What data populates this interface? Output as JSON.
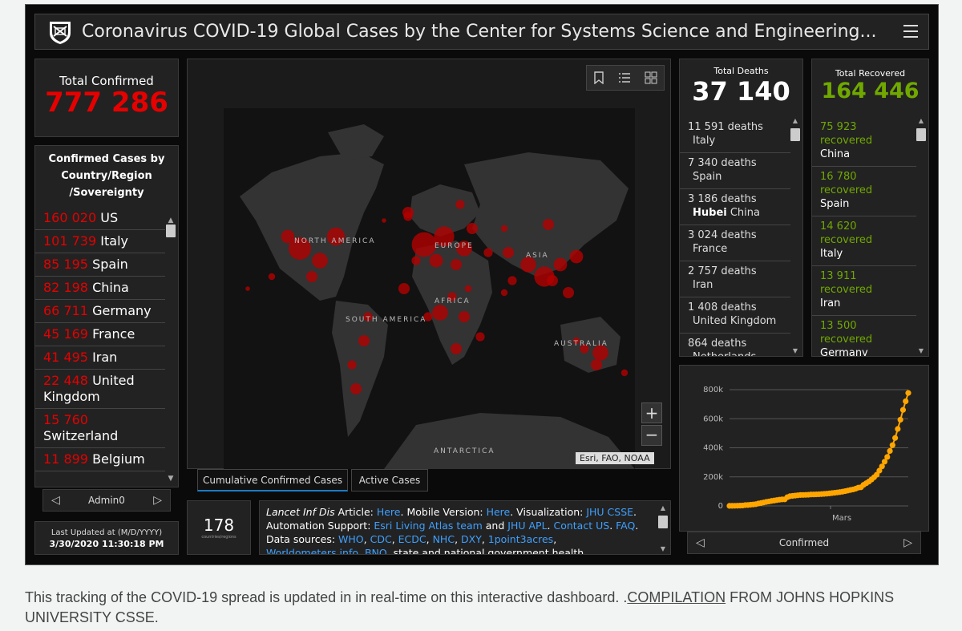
{
  "header": {
    "title": "Coronavirus COVID-19 Global Cases by the Center for Systems Science and Engineering..."
  },
  "confirmed": {
    "label": "Total Confirmed",
    "value": "777 286",
    "list_title": "Confirmed Cases by Country/Region /Sovereignty",
    "items": [
      {
        "n": "160 020",
        "c": "US"
      },
      {
        "n": "101 739",
        "c": "Italy"
      },
      {
        "n": "85 195",
        "c": "Spain"
      },
      {
        "n": "82 198",
        "c": "China"
      },
      {
        "n": "66 711",
        "c": "Germany"
      },
      {
        "n": "45 169",
        "c": "France"
      },
      {
        "n": "41 495",
        "c": "Iran"
      },
      {
        "n": "22 448",
        "c": "United Kingdom"
      },
      {
        "n": "15 760",
        "c": "Switzerland"
      },
      {
        "n": "11 899",
        "c": "Belgium"
      }
    ],
    "nav_label": "Admin0"
  },
  "updated": {
    "label": "Last Updated at (M/D/YYYY)",
    "value": "3/30/2020 11:30:18 PM"
  },
  "countries": {
    "count": "178",
    "caption": "countries/regions"
  },
  "map": {
    "labels": [
      "NORTH AMERICA",
      "EUROPE",
      "ASIA",
      "AFRICA",
      "SOUTH AMERICA",
      "AUSTRALIA",
      "ANTARCTICA"
    ],
    "attribution": "Esri, FAO, NOAA",
    "tabs": [
      "Cumulative Confirmed Cases",
      "Active Cases"
    ]
  },
  "info": {
    "line1_prefix": "Lancet Inf Dis",
    "line1_a": " Article: ",
    "line1_l1": "Here",
    "line1_b": ". Mobile Version: ",
    "line1_l2": "Here",
    "line1_c": ". Visualization: ",
    "line1_l3": "JHU CSSE",
    "line1_d": ".",
    "line2_a": "Automation Support: ",
    "line2_l1": "Esri Living Atlas team",
    "line2_b": " and ",
    "line2_l2": "JHU APL",
    "line2_c": ". ",
    "line2_l3": "Contact US",
    "line2_d": ". ",
    "line2_l4": "FAQ",
    "line2_e": ".",
    "line3_a": "Data sources: ",
    "line3_l1": "WHO",
    "line3_l2": "CDC",
    "line3_l3": "ECDC",
    "line3_l4": "NHC",
    "line3_l5": "DXY",
    "line3_l6": "1point3acres",
    "line4_l1": "Worldometers.info",
    "line4_l2": "BNO",
    "line4_a": ", state and national government health"
  },
  "deaths": {
    "label": "Total Deaths",
    "value": "37 140",
    "items": [
      {
        "n": "11 591 deaths",
        "p": "",
        "c": "Italy"
      },
      {
        "n": "7 340 deaths",
        "p": "",
        "c": "Spain"
      },
      {
        "n": "3 186 deaths",
        "p": "Hubei",
        "c": "China"
      },
      {
        "n": "3 024 deaths",
        "p": "",
        "c": "France"
      },
      {
        "n": "2 757 deaths",
        "p": "",
        "c": "Iran"
      },
      {
        "n": "1 408 deaths",
        "p": "",
        "c": "United Kingdom"
      },
      {
        "n": "864 deaths",
        "p": "",
        "c": "Netherlands"
      }
    ]
  },
  "recovered": {
    "label": "Total Recovered",
    "value": "164 446",
    "word": "recovered",
    "items": [
      {
        "n": "75 923",
        "c": "China"
      },
      {
        "n": "16 780",
        "c": "Spain"
      },
      {
        "n": "14 620",
        "c": "Italy"
      },
      {
        "n": "13 911",
        "c": "Iran"
      },
      {
        "n": "13 500",
        "c": "Germany"
      }
    ]
  },
  "chart_panel": {
    "nav_label": "Confirmed"
  },
  "chart_data": {
    "type": "line",
    "x_tick_labels": [
      "Mars"
    ],
    "ylabel": "",
    "y_ticks": [
      "0",
      "200k",
      "400k",
      "600k",
      "800k"
    ],
    "ylim": [
      0,
      800000
    ],
    "color": "#ffa500",
    "series": [
      {
        "values": [
          555,
          654,
          941,
          1434,
          2118,
          2927,
          5578,
          6166,
          8234,
          9927,
          12038,
          16787,
          19881,
          23892,
          27635,
          30817,
          34391,
          37120,
          40150,
          42762,
          44802,
          45221,
          60368,
          66885,
          69030,
          71224,
          73258,
          75136,
          75639,
          76197,
          76819,
          78572,
          78958,
          79561,
          80406,
          81388,
          82746,
          84112,
          86011,
          88369,
          90306,
          92840,
          95120,
          97886,
          101800,
          105836,
          109835,
          113582,
          118582,
          125865,
          128343,
          145193,
          156097,
          167449,
          181546,
          197168,
          214915,
          242713,
          272167,
          304528,
          336953,
          378235,
          418045,
          467653,
          529591,
          593291,
          660706,
          720117,
          777286
        ]
      }
    ]
  },
  "caption": {
    "text_a": "This tracking of the COVID-19 spread is updated in in real-time on this interactive dashboard. .",
    "link": "COMPILATION",
    "text_b": " FROM JOHNS HOPKINS UNIVERSITY CSSE."
  },
  "colors": {
    "confirmed": "#e60000",
    "recovered": "#70a800",
    "bubble": "#b30000",
    "chart_line": "#ffa500",
    "link": "#3ea0ff"
  }
}
